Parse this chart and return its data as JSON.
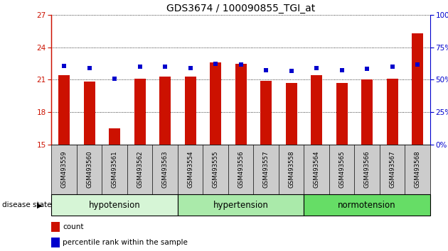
{
  "title": "GDS3674 / 100090855_TGI_at",
  "samples": [
    "GSM493559",
    "GSM493560",
    "GSM493561",
    "GSM493562",
    "GSM493563",
    "GSM493554",
    "GSM493555",
    "GSM493556",
    "GSM493557",
    "GSM493558",
    "GSM493564",
    "GSM493565",
    "GSM493566",
    "GSM493567",
    "GSM493568"
  ],
  "bar_heights": [
    21.4,
    20.8,
    16.5,
    21.1,
    21.3,
    21.3,
    22.6,
    22.5,
    20.9,
    20.7,
    21.4,
    20.7,
    21.0,
    21.1,
    25.3
  ],
  "percentile_values": [
    22.3,
    22.1,
    21.1,
    22.2,
    22.2,
    22.1,
    22.5,
    22.4,
    21.9,
    21.8,
    22.1,
    21.9,
    22.0,
    22.2,
    22.4
  ],
  "ymin": 15,
  "ymax": 27,
  "yticks_left": [
    15,
    18,
    21,
    24,
    27
  ],
  "yticks_right": [
    0,
    25,
    50,
    75,
    100
  ],
  "bar_color": "#cc1100",
  "dot_color": "#0000cc",
  "groups": [
    {
      "label": "hypotension",
      "indices": [
        0,
        1,
        2,
        3,
        4
      ],
      "color": "#d6f5d6"
    },
    {
      "label": "hypertension",
      "indices": [
        5,
        6,
        7,
        8,
        9
      ],
      "color": "#aaeaaa"
    },
    {
      "label": "normotension",
      "indices": [
        10,
        11,
        12,
        13,
        14
      ],
      "color": "#66dd66"
    }
  ],
  "tick_bg_color": "#cccccc",
  "disease_state_label": "disease state"
}
